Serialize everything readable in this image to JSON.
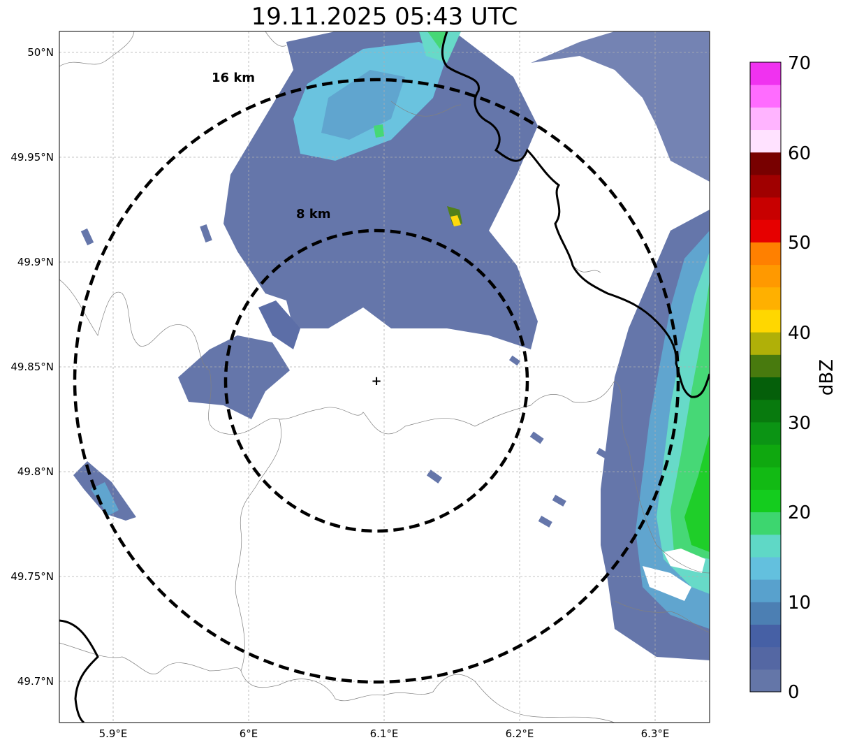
{
  "title": "19.11.2025 05:43 UTC",
  "map": {
    "lon_ticks": [
      "5.9°E",
      "6°E",
      "6.1°E",
      "6.2°E",
      "6.3°E"
    ],
    "lat_ticks": [
      "50°N",
      "49.95°N",
      "49.9°N",
      "49.85°N",
      "49.8°N",
      "49.75°N",
      "49.7°N"
    ],
    "lon_range": [
      5.86,
      6.34
    ],
    "lat_range": [
      49.68,
      50.01
    ],
    "radar_site": {
      "lon": 6.095,
      "lat": 49.843
    },
    "range_rings": [
      {
        "label": "8 km",
        "radius_km": 8
      },
      {
        "label": "16 km",
        "radius_km": 16
      }
    ],
    "gridlines": true
  },
  "colorbar": {
    "label": "dBZ",
    "ticks": [
      "0",
      "10",
      "20",
      "30",
      "40",
      "50",
      "60",
      "70"
    ],
    "range": [
      0,
      70
    ],
    "step": 2.5,
    "colors": [
      "#6476a8",
      "#5467a3",
      "#4660a5",
      "#4c7fb3",
      "#58a1cd",
      "#63c0de",
      "#5fd8c6",
      "#3dd66f",
      "#14cc1e",
      "#12ba14",
      "#0fa80f",
      "#0b9414",
      "#087a0e",
      "#055f0a",
      "#487a0e",
      "#b0b008",
      "#ffd700",
      "#ffb000",
      "#ff9900",
      "#ff8000",
      "#e60000",
      "#c80000",
      "#a00000",
      "#780000",
      "#ffe2ff",
      "#ffb4ff",
      "#ff6cff",
      "#f032f0"
    ]
  }
}
